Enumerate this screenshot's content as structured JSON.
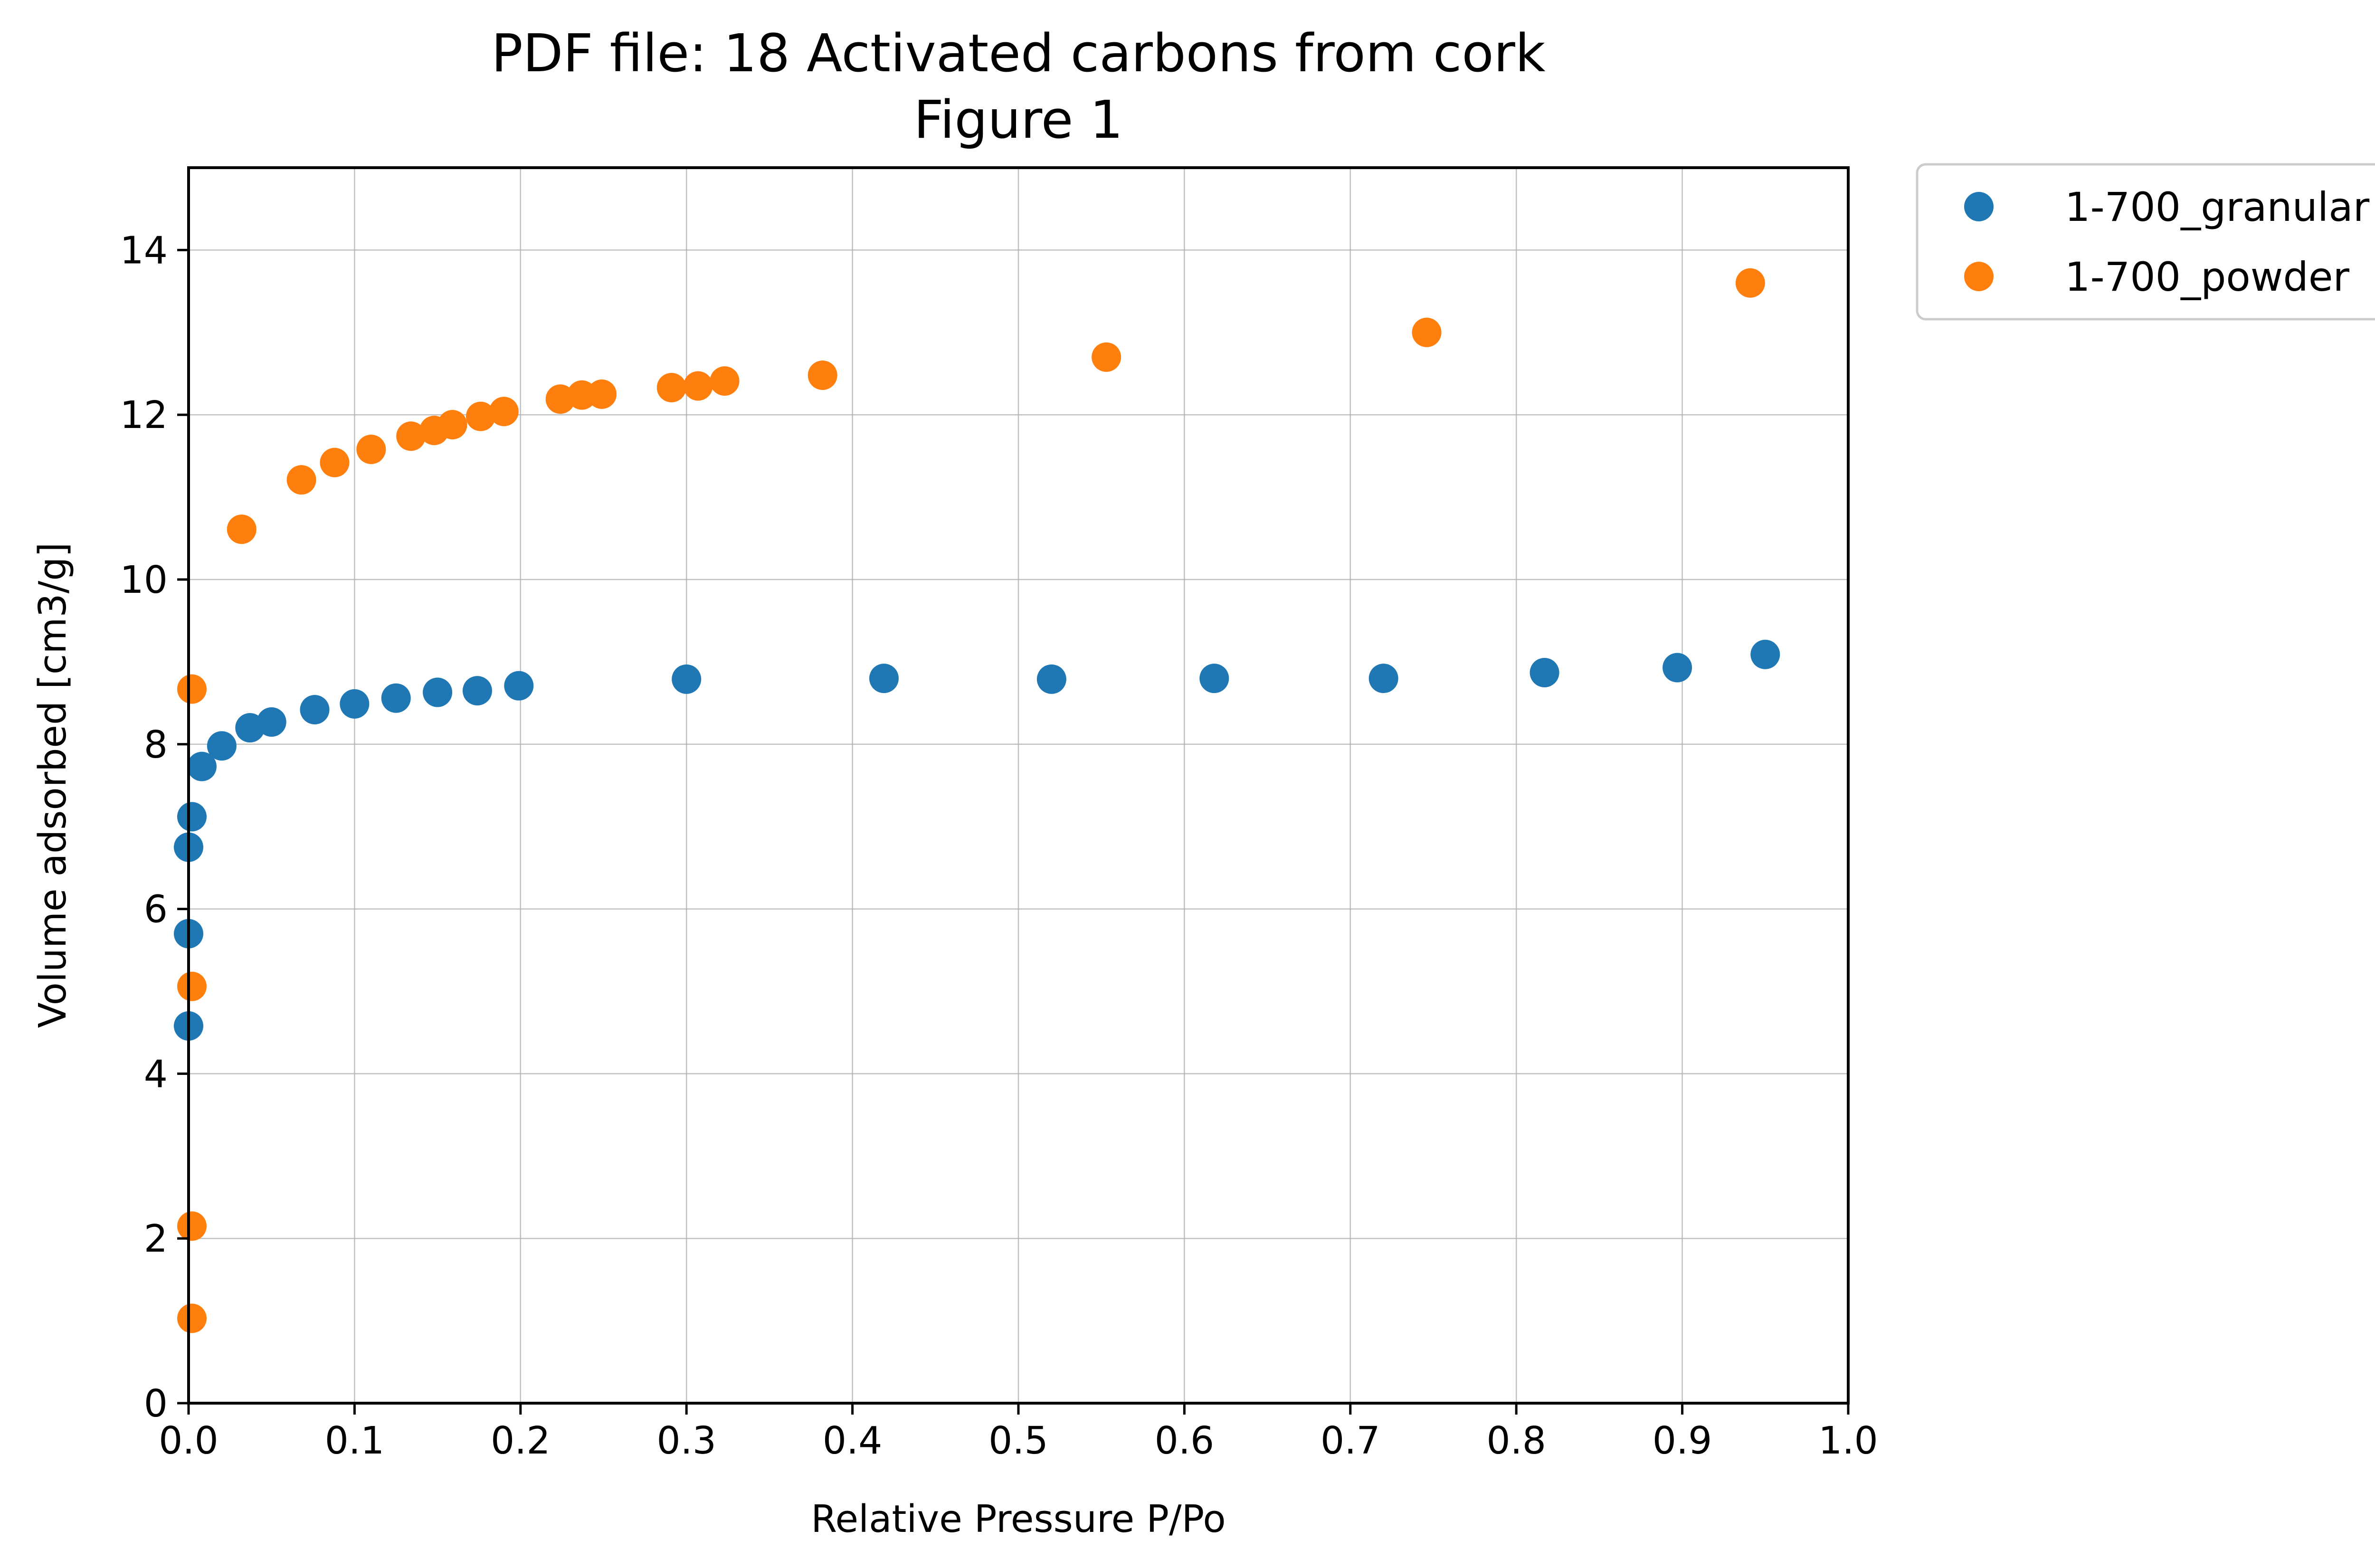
{
  "chart_data": {
    "type": "scatter",
    "title": [
      "PDF file: 18 Activated carbons from cork",
      "Figure 1"
    ],
    "xlabel": "Relative Pressure P/Po",
    "ylabel": "Volume adsorbed [cm3/g]",
    "xlim": [
      0,
      1.0
    ],
    "ylim": [
      0,
      15
    ],
    "xticks": [
      0.0,
      0.1,
      0.2,
      0.3,
      0.4,
      0.5,
      0.6,
      0.7,
      0.8,
      0.9,
      1.0
    ],
    "xtick_labels": [
      "0.0",
      "0.1",
      "0.2",
      "0.3",
      "0.4",
      "0.5",
      "0.6",
      "0.7",
      "0.8",
      "0.9",
      "1.0"
    ],
    "yticks": [
      0,
      2,
      4,
      6,
      8,
      10,
      12,
      14
    ],
    "ytick_labels": [
      "0",
      "2",
      "4",
      "6",
      "8",
      "10",
      "12",
      "14"
    ],
    "grid": true,
    "legend_position": "outside-top-right",
    "series": [
      {
        "name": "1-700_granular",
        "color": "#1f77b4",
        "x": [
          0.0,
          0.0,
          0.0,
          0.002,
          0.008,
          0.02,
          0.037,
          0.05,
          0.076,
          0.1,
          0.125,
          0.15,
          0.174,
          0.199,
          0.3,
          0.419,
          0.52,
          0.618,
          0.72,
          0.817,
          0.897,
          0.95
        ],
        "y": [
          4.58,
          5.7,
          6.75,
          7.12,
          7.73,
          7.98,
          8.2,
          8.27,
          8.42,
          8.49,
          8.56,
          8.63,
          8.65,
          8.71,
          8.79,
          8.8,
          8.79,
          8.8,
          8.8,
          8.87,
          8.93,
          9.09
        ]
      },
      {
        "name": "1-700_powder",
        "color": "#ff7f0e",
        "x": [
          0.002,
          0.002,
          0.002,
          0.002,
          0.032,
          0.068,
          0.088,
          0.11,
          0.134,
          0.148,
          0.159,
          0.176,
          0.19,
          0.224,
          0.237,
          0.249,
          0.291,
          0.307,
          0.323,
          0.382,
          0.553,
          0.746,
          0.941
        ],
        "y": [
          1.03,
          2.15,
          5.06,
          8.67,
          10.61,
          11.21,
          11.42,
          11.58,
          11.74,
          11.81,
          11.88,
          11.98,
          12.04,
          12.19,
          12.24,
          12.25,
          12.33,
          12.35,
          12.41,
          12.48,
          12.7,
          13.0,
          13.6
        ]
      }
    ]
  }
}
